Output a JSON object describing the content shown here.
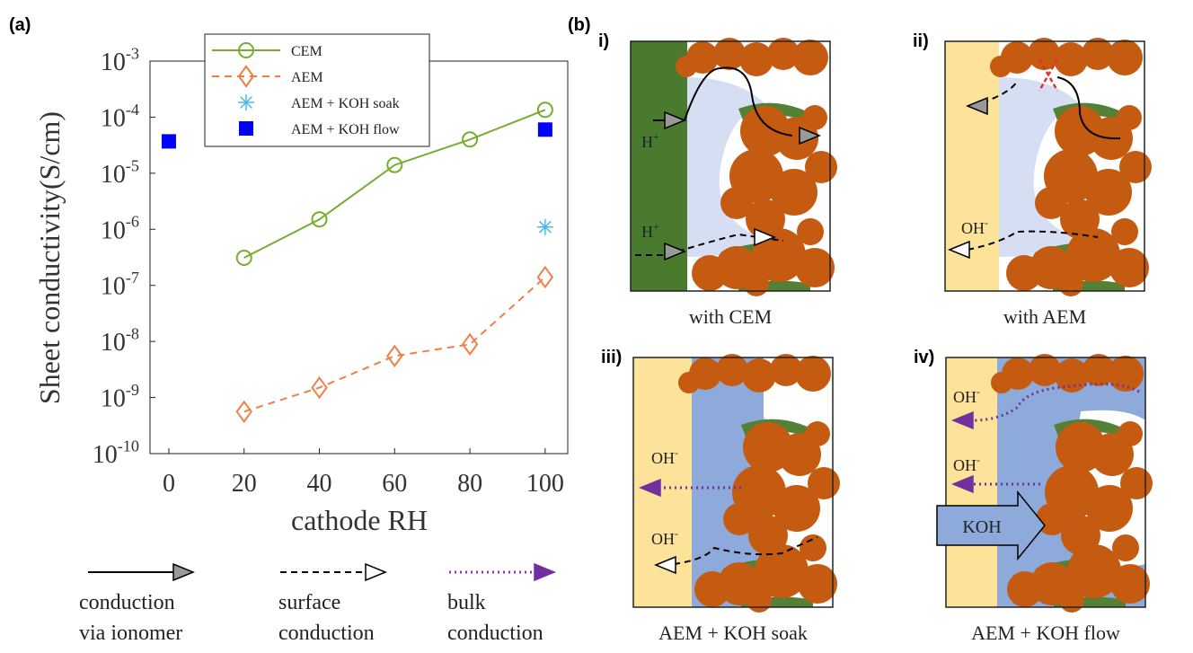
{
  "panel_a_label": "(a)",
  "chart_data": {
    "type": "line",
    "xlabel": "cathode RH",
    "ylabel": "Sheet conductivity(S/cm)",
    "yscale": "log",
    "xlim": [
      -5,
      106
    ],
    "ylim": [
      1e-10,
      0.001
    ],
    "xticks": [
      0,
      20,
      40,
      60,
      80,
      100
    ],
    "yticks": [
      {
        "value": 1e-10,
        "label": "10",
        "exponent": "-10"
      },
      {
        "value": 1e-09,
        "label": "10",
        "exponent": "-9"
      },
      {
        "value": 1e-08,
        "label": "10",
        "exponent": "-8"
      },
      {
        "value": 1e-07,
        "label": "10",
        "exponent": "-7"
      },
      {
        "value": 1e-06,
        "label": "10",
        "exponent": "-6"
      },
      {
        "value": 1e-05,
        "label": "10",
        "exponent": "-5"
      },
      {
        "value": 0.0001,
        "label": "10",
        "exponent": "-4"
      },
      {
        "value": 0.001,
        "label": "10",
        "exponent": "-3"
      }
    ],
    "legend": "upper center",
    "series": [
      {
        "name": "CEM",
        "color": "#77ac30",
        "marker": "circle",
        "line_style": "solid",
        "x": [
          20,
          40,
          60,
          80,
          100
        ],
        "values": [
          3.1e-07,
          1.5e-06,
          1.4e-05,
          4e-05,
          0.000135
        ]
      },
      {
        "name": "AEM",
        "color": "#f07f45",
        "marker": "diamond",
        "line_style": "dashed",
        "x": [
          20,
          40,
          60,
          80,
          100
        ],
        "values": [
          5.6e-10,
          1.5e-09,
          5.5e-09,
          8.9e-09,
          1.4e-07
        ]
      },
      {
        "name": "AEM + KOH soak",
        "color": "#4db8e8",
        "marker": "star",
        "line_style": "none",
        "x": [
          100
        ],
        "values": [
          1.1e-06
        ]
      },
      {
        "name": "AEM + KOH flow",
        "color": "#0000ff",
        "marker": "square",
        "line_style": "none",
        "x": [
          0,
          100
        ],
        "values": [
          3.7e-05,
          6e-05
        ]
      }
    ]
  },
  "conduction_legend": [
    {
      "style": "ionomer",
      "lines": [
        "conduction",
        "via ionomer"
      ]
    },
    {
      "style": "surface",
      "lines": [
        "surface",
        "conduction"
      ]
    },
    {
      "style": "bulk",
      "lines": [
        "bulk",
        "conduction"
      ]
    }
  ],
  "panel_b": {
    "label": "(b)",
    "diagrams": [
      {
        "label": "i)",
        "caption": "with CEM",
        "ions": [
          {
            "base": "H",
            "sup": "+"
          },
          {
            "base": "H",
            "sup": "+"
          }
        ]
      },
      {
        "label": "ii)",
        "caption": "with AEM",
        "ions": [
          {
            "base": "OH",
            "sup": "-"
          }
        ]
      },
      {
        "label": "iii)",
        "caption": "AEM + KOH soak",
        "ions": [
          {
            "base": "OH",
            "sup": "-"
          },
          {
            "base": "OH",
            "sup": "-"
          }
        ]
      },
      {
        "label": "iv)",
        "caption": "AEM + KOH flow",
        "ions": [
          {
            "base": "OH",
            "sup": "-"
          },
          {
            "base": "OH",
            "sup": "-"
          }
        ],
        "flow_label": "KOH"
      }
    ]
  }
}
